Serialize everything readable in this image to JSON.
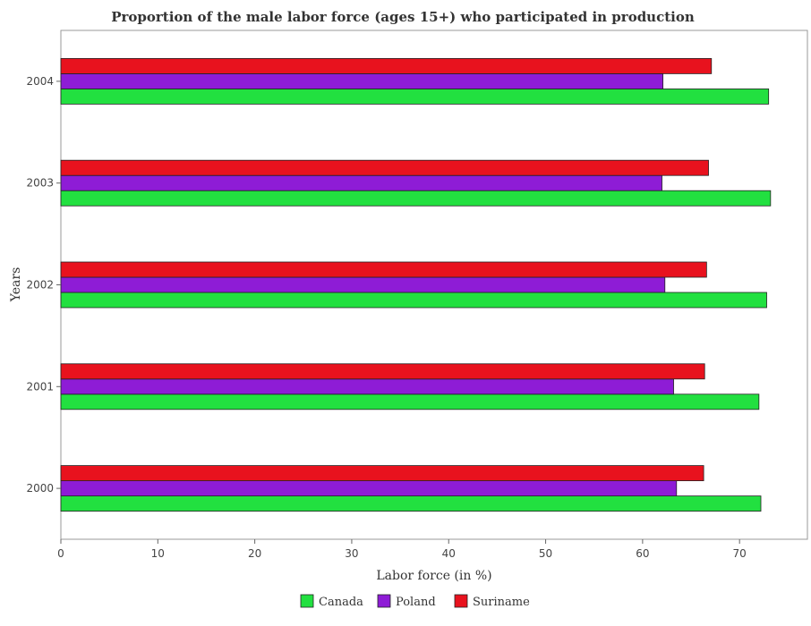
{
  "chart_data": {
    "type": "bar",
    "orientation": "horizontal",
    "title": "Proportion of the male labor force (ages 15+) who participated in production",
    "xlabel": "Labor force (in %)",
    "ylabel": "Years",
    "categories": [
      "2000",
      "2001",
      "2002",
      "2003",
      "2004"
    ],
    "series": [
      {
        "name": "Canada",
        "color": "#22e040",
        "values": [
          72.2,
          72.0,
          72.8,
          73.2,
          73.0
        ]
      },
      {
        "name": "Poland",
        "color": "#8e1cd6",
        "values": [
          63.5,
          63.2,
          62.3,
          62.0,
          62.1
        ]
      },
      {
        "name": "Suriname",
        "color": "#e8121e",
        "values": [
          66.3,
          66.4,
          66.6,
          66.8,
          67.1
        ]
      }
    ],
    "xlim": [
      0,
      77
    ],
    "xticks": [
      0,
      10,
      20,
      30,
      40,
      50,
      60,
      70
    ],
    "grid": false,
    "legend_position": "bottom-center"
  }
}
